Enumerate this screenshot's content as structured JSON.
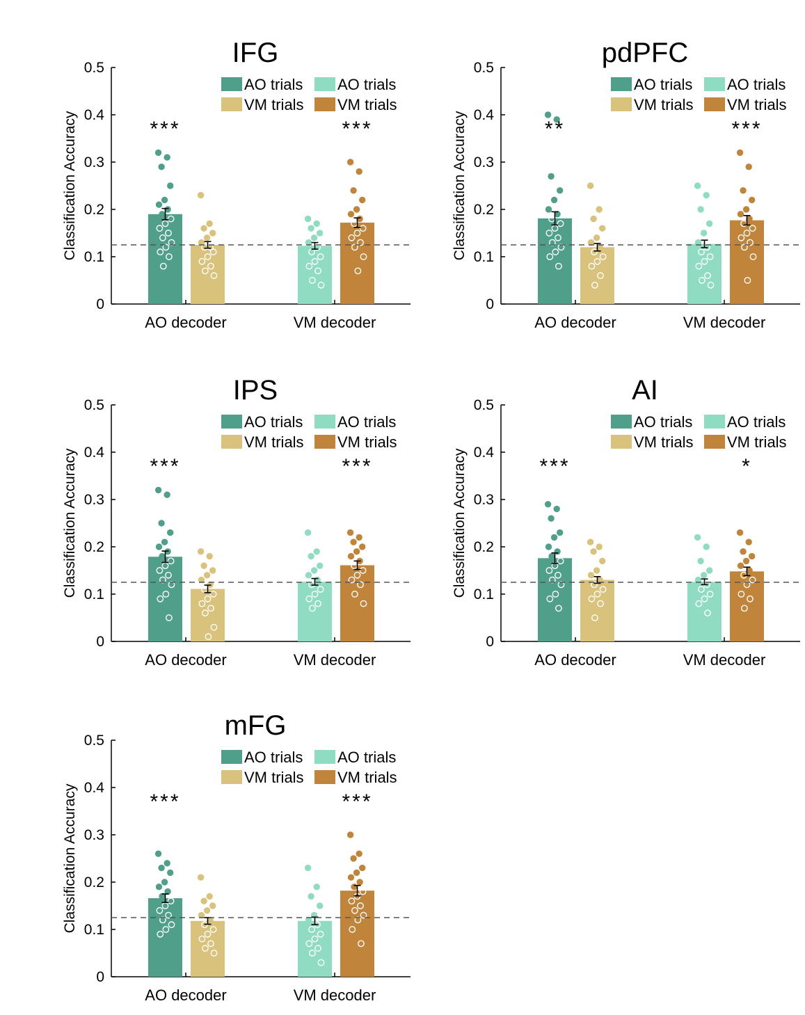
{
  "colors": {
    "ao_decoder_ao_trials": "#4f9f8b",
    "ao_decoder_vm_trials": "#d8c27c",
    "vm_decoder_ao_trials": "#8fdcc3",
    "vm_decoder_vm_trials": "#c0843a",
    "chance_line": "#555555"
  },
  "chart_data": [
    {
      "type": "bar",
      "title": "IFG",
      "ylabel": "Classification Accuracy",
      "ylim": [
        0,
        0.5
      ],
      "yticks": [
        "0",
        "0.1",
        "0.2",
        "0.3",
        "0.4",
        "0.5"
      ],
      "categories": [
        "AO decoder",
        "VM decoder"
      ],
      "legend": [
        "AO trials",
        "AO trials",
        "VM trials",
        "VM trials"
      ],
      "chance_level": 0.125,
      "series": [
        {
          "name": "AO trials",
          "group": "AO decoder",
          "value": 0.19,
          "sem": 0.012,
          "points": [
            0.32,
            0.31,
            0.29,
            0.25,
            0.22,
            0.21,
            0.2,
            0.19,
            0.18,
            0.17,
            0.16,
            0.15,
            0.14,
            0.13,
            0.12,
            0.11,
            0.1,
            0.08
          ]
        },
        {
          "name": "VM trials",
          "group": "AO decoder",
          "value": 0.125,
          "sem": 0.007,
          "points": [
            0.23,
            0.17,
            0.16,
            0.15,
            0.14,
            0.13,
            0.12,
            0.12,
            0.11,
            0.1,
            0.09,
            0.08,
            0.07,
            0.06
          ]
        },
        {
          "name": "AO trials",
          "group": "VM decoder",
          "value": 0.123,
          "sem": 0.007,
          "points": [
            0.18,
            0.17,
            0.16,
            0.15,
            0.14,
            0.13,
            0.12,
            0.11,
            0.1,
            0.09,
            0.08,
            0.07,
            0.05,
            0.04
          ]
        },
        {
          "name": "VM trials",
          "group": "VM decoder",
          "value": 0.172,
          "sem": 0.01,
          "points": [
            0.3,
            0.28,
            0.24,
            0.22,
            0.2,
            0.19,
            0.18,
            0.17,
            0.16,
            0.15,
            0.14,
            0.13,
            0.12,
            0.1,
            0.07
          ]
        }
      ],
      "significance": [
        "***",
        "",
        "",
        "***"
      ]
    },
    {
      "type": "bar",
      "title": "pdPFC",
      "ylabel": "Classification Accuracy",
      "ylim": [
        0,
        0.5
      ],
      "yticks": [
        "0",
        "0.1",
        "0.2",
        "0.3",
        "0.4",
        "0.5"
      ],
      "categories": [
        "AO decoder",
        "VM decoder"
      ],
      "legend": [
        "AO trials",
        "AO trials",
        "VM trials",
        "VM trials"
      ],
      "chance_level": 0.125,
      "series": [
        {
          "name": "AO trials",
          "group": "AO decoder",
          "value": 0.181,
          "sem": 0.014,
          "points": [
            0.4,
            0.39,
            0.27,
            0.24,
            0.22,
            0.2,
            0.19,
            0.18,
            0.17,
            0.16,
            0.15,
            0.14,
            0.13,
            0.12,
            0.11,
            0.1,
            0.08
          ]
        },
        {
          "name": "VM trials",
          "group": "AO decoder",
          "value": 0.12,
          "sem": 0.008,
          "points": [
            0.25,
            0.2,
            0.18,
            0.16,
            0.14,
            0.13,
            0.12,
            0.11,
            0.1,
            0.09,
            0.08,
            0.06,
            0.04
          ]
        },
        {
          "name": "AO trials",
          "group": "VM decoder",
          "value": 0.127,
          "sem": 0.008,
          "points": [
            0.25,
            0.23,
            0.2,
            0.17,
            0.15,
            0.13,
            0.12,
            0.11,
            0.1,
            0.09,
            0.08,
            0.06,
            0.05,
            0.04
          ]
        },
        {
          "name": "VM trials",
          "group": "VM decoder",
          "value": 0.177,
          "sem": 0.01,
          "points": [
            0.32,
            0.29,
            0.24,
            0.22,
            0.2,
            0.19,
            0.18,
            0.17,
            0.16,
            0.15,
            0.14,
            0.13,
            0.12,
            0.1,
            0.05
          ]
        }
      ],
      "significance": [
        "**",
        "",
        "",
        "***"
      ]
    },
    {
      "type": "bar",
      "title": "IPS",
      "ylabel": "Classification Accuracy",
      "ylim": [
        0,
        0.5
      ],
      "yticks": [
        "0",
        "0.1",
        "0.2",
        "0.3",
        "0.4",
        "0.5"
      ],
      "categories": [
        "AO decoder",
        "VM decoder"
      ],
      "legend": [
        "AO trials",
        "AO trials",
        "VM trials",
        "VM trials"
      ],
      "chance_level": 0.125,
      "series": [
        {
          "name": "AO trials",
          "group": "AO decoder",
          "value": 0.179,
          "sem": 0.012,
          "points": [
            0.32,
            0.31,
            0.25,
            0.23,
            0.21,
            0.2,
            0.19,
            0.18,
            0.17,
            0.16,
            0.15,
            0.14,
            0.13,
            0.12,
            0.1,
            0.09,
            0.05
          ]
        },
        {
          "name": "VM trials",
          "group": "AO decoder",
          "value": 0.111,
          "sem": 0.008,
          "points": [
            0.19,
            0.18,
            0.16,
            0.15,
            0.14,
            0.13,
            0.12,
            0.11,
            0.1,
            0.09,
            0.08,
            0.07,
            0.06,
            0.03,
            0.01
          ]
        },
        {
          "name": "AO trials",
          "group": "VM decoder",
          "value": 0.126,
          "sem": 0.007,
          "points": [
            0.23,
            0.19,
            0.18,
            0.16,
            0.15,
            0.14,
            0.13,
            0.12,
            0.11,
            0.1,
            0.09,
            0.08,
            0.07
          ]
        },
        {
          "name": "VM trials",
          "group": "VM decoder",
          "value": 0.161,
          "sem": 0.009,
          "points": [
            0.23,
            0.22,
            0.21,
            0.2,
            0.19,
            0.18,
            0.17,
            0.16,
            0.15,
            0.14,
            0.13,
            0.12,
            0.1,
            0.08
          ]
        }
      ],
      "significance": [
        "***",
        "",
        "",
        "***"
      ]
    },
    {
      "type": "bar",
      "title": "AI",
      "ylabel": "Classification Accuracy",
      "ylim": [
        0,
        0.5
      ],
      "yticks": [
        "0",
        "0.1",
        "0.2",
        "0.3",
        "0.4",
        "0.5"
      ],
      "categories": [
        "AO decoder",
        "VM decoder"
      ],
      "legend": [
        "AO trials",
        "AO trials",
        "VM trials",
        "VM trials"
      ],
      "chance_level": 0.125,
      "series": [
        {
          "name": "AO trials",
          "group": "AO decoder",
          "value": 0.176,
          "sem": 0.011,
          "points": [
            0.29,
            0.28,
            0.26,
            0.23,
            0.22,
            0.2,
            0.19,
            0.18,
            0.17,
            0.16,
            0.15,
            0.14,
            0.13,
            0.12,
            0.1,
            0.09,
            0.07
          ]
        },
        {
          "name": "VM trials",
          "group": "AO decoder",
          "value": 0.13,
          "sem": 0.007,
          "points": [
            0.21,
            0.2,
            0.19,
            0.17,
            0.15,
            0.14,
            0.13,
            0.12,
            0.11,
            0.1,
            0.09,
            0.08,
            0.05
          ]
        },
        {
          "name": "AO trials",
          "group": "VM decoder",
          "value": 0.126,
          "sem": 0.006,
          "points": [
            0.22,
            0.2,
            0.17,
            0.15,
            0.14,
            0.13,
            0.12,
            0.11,
            0.1,
            0.09,
            0.08,
            0.06
          ]
        },
        {
          "name": "VM trials",
          "group": "VM decoder",
          "value": 0.148,
          "sem": 0.009,
          "points": [
            0.23,
            0.21,
            0.19,
            0.18,
            0.17,
            0.16,
            0.15,
            0.14,
            0.13,
            0.12,
            0.1,
            0.09,
            0.07
          ]
        }
      ],
      "significance": [
        "***",
        "",
        "",
        "*"
      ]
    },
    {
      "type": "bar",
      "title": "mFG",
      "ylabel": "Classification Accuracy",
      "ylim": [
        0,
        0.5
      ],
      "yticks": [
        "0",
        "0.1",
        "0.2",
        "0.3",
        "0.4",
        "0.5"
      ],
      "categories": [
        "AO decoder",
        "VM decoder"
      ],
      "legend": [
        "AO trials",
        "AO trials",
        "VM trials",
        "VM trials"
      ],
      "chance_level": 0.125,
      "series": [
        {
          "name": "AO trials",
          "group": "AO decoder",
          "value": 0.166,
          "sem": 0.009,
          "points": [
            0.26,
            0.24,
            0.23,
            0.22,
            0.2,
            0.19,
            0.18,
            0.17,
            0.16,
            0.15,
            0.14,
            0.13,
            0.12,
            0.11,
            0.1,
            0.09
          ]
        },
        {
          "name": "VM trials",
          "group": "AO decoder",
          "value": 0.118,
          "sem": 0.007,
          "points": [
            0.21,
            0.17,
            0.16,
            0.15,
            0.14,
            0.13,
            0.12,
            0.11,
            0.1,
            0.09,
            0.08,
            0.07,
            0.06,
            0.05
          ]
        },
        {
          "name": "AO trials",
          "group": "VM decoder",
          "value": 0.118,
          "sem": 0.008,
          "points": [
            0.23,
            0.19,
            0.17,
            0.15,
            0.13,
            0.12,
            0.11,
            0.1,
            0.09,
            0.08,
            0.07,
            0.06,
            0.05,
            0.03
          ]
        },
        {
          "name": "VM trials",
          "group": "VM decoder",
          "value": 0.182,
          "sem": 0.011,
          "points": [
            0.3,
            0.26,
            0.25,
            0.23,
            0.22,
            0.21,
            0.2,
            0.19,
            0.18,
            0.17,
            0.16,
            0.15,
            0.14,
            0.13,
            0.12,
            0.1,
            0.07
          ]
        }
      ],
      "significance": [
        "***",
        "",
        "",
        "***"
      ]
    }
  ]
}
